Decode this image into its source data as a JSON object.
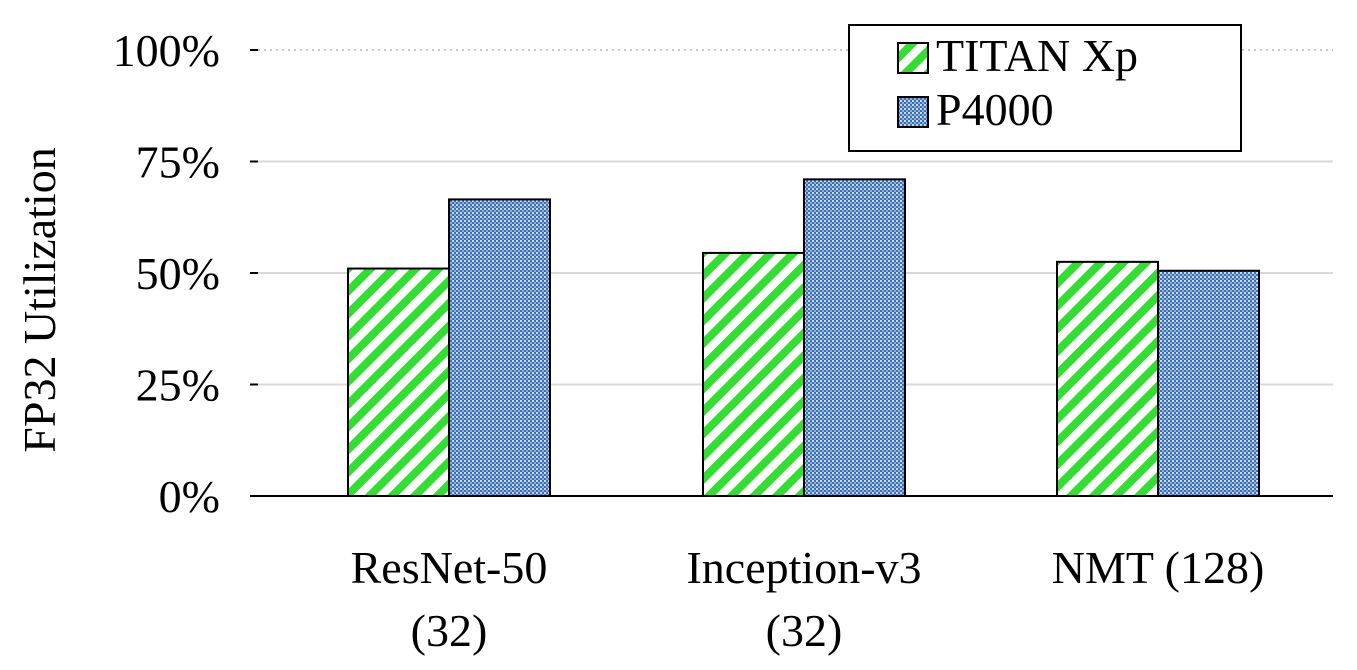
{
  "chart_data": {
    "type": "bar",
    "ylabel": "FP32 Utilization",
    "categories": [
      [
        "ResNet-50",
        "(32)"
      ],
      [
        "Inception-v3",
        "(32)"
      ],
      [
        "NMT (128)"
      ]
    ],
    "series": [
      {
        "name": "TITAN Xp",
        "values": [
          51,
          54.5,
          52.5
        ],
        "pattern": "diagonal-stripes",
        "color": "#33dd33"
      },
      {
        "name": "P4000",
        "values": [
          66.5,
          71,
          50.5
        ],
        "pattern": "dotted-grid",
        "color": "#3a6fb5"
      }
    ],
    "ylim": [
      0,
      100
    ],
    "yticks": [
      0,
      25,
      50,
      75,
      100
    ],
    "ytick_labels": [
      "0%",
      "25%",
      "50%",
      "75%",
      "100%"
    ],
    "grid": true,
    "legend_position": "top-right"
  }
}
